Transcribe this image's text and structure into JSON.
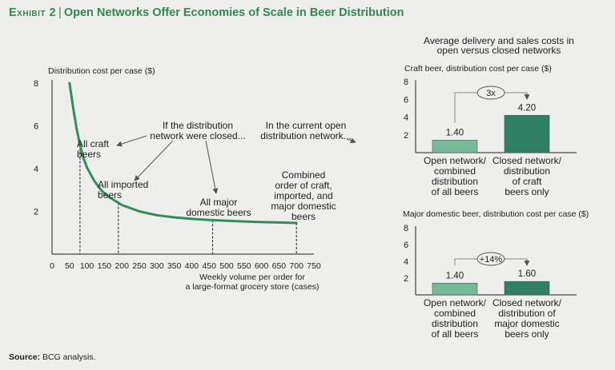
{
  "header": {
    "exhibit_label": "Exhibit 2",
    "title": "Open Networks Offer Economies of Scale in Beer Distribution"
  },
  "source": {
    "label": "Source:",
    "text": "BCG analysis."
  },
  "colors": {
    "accent": "#2f8a4c",
    "curve": "#2e8f5a",
    "open_bar": "#74b89a",
    "closed_bar": "#2f7f64"
  },
  "chart_data": [
    {
      "type": "line",
      "ylabel": "Distribution cost per case ($)",
      "xlabel": [
        "Weekly volume per order for",
        "a large-format grocery store (cases)"
      ],
      "xlim": [
        0,
        750
      ],
      "ylim": [
        0,
        8
      ],
      "x_ticks": [
        "0",
        "50",
        "100",
        "150",
        "200",
        "250",
        "300",
        "350",
        "400",
        "450",
        "500",
        "550",
        "600",
        "650",
        "700",
        "750"
      ],
      "y_ticks": [
        "2",
        "4",
        "6",
        "8"
      ],
      "series": [
        {
          "x": [
            50,
            60,
            70,
            80,
            90,
            100,
            120,
            140,
            160,
            180,
            200,
            250,
            300,
            350,
            400,
            450,
            500,
            550,
            600,
            650,
            700
          ],
          "y": [
            8.0,
            6.9,
            5.9,
            5.1,
            4.5,
            4.05,
            3.45,
            3.0,
            2.7,
            2.5,
            2.3,
            2.0,
            1.82,
            1.72,
            1.65,
            1.6,
            1.56,
            1.53,
            1.5,
            1.48,
            1.46
          ]
        }
      ],
      "markers": [
        {
          "x": 80,
          "label": [
            "All craft",
            "beers"
          ]
        },
        {
          "x": 190,
          "label": [
            "All imported",
            "beers"
          ]
        },
        {
          "x": 460,
          "label": [
            "All major",
            "domestic beers"
          ]
        },
        {
          "x": 700,
          "label": [
            "Combined",
            "order of craft,",
            "imported, and",
            "major domestic",
            "beers"
          ]
        }
      ],
      "annotations": [
        [
          "If the distribution",
          "network were closed..."
        ],
        [
          "In the current open",
          "distribution network..."
        ]
      ]
    },
    {
      "type": "bar",
      "title": [
        "Average delivery and sales costs in",
        "open versus closed networks"
      ],
      "subtitle": "Craft beer, distribution cost per case ($)",
      "ylim": [
        0,
        8
      ],
      "y_ticks": [
        "2",
        "4",
        "6",
        "8"
      ],
      "categories": [
        [
          "Open network/",
          "combined",
          "distribution",
          "of all beers"
        ],
        [
          "Closed network/",
          "distribution",
          "of craft",
          "beers only"
        ]
      ],
      "values": [
        1.4,
        4.2
      ],
      "data_labels": [
        "1.40",
        "4.20"
      ],
      "comparison": "3x"
    },
    {
      "type": "bar",
      "subtitle": "Major domestic beer, distribution cost per case ($)",
      "ylim": [
        0,
        8
      ],
      "y_ticks": [
        "2",
        "4",
        "6",
        "8"
      ],
      "categories": [
        [
          "Open network/",
          "combined",
          "distribution",
          "of all beers"
        ],
        [
          "Closed network/",
          "distribution of",
          "major domestic",
          "beers only"
        ]
      ],
      "values": [
        1.4,
        1.6
      ],
      "data_labels": [
        "1.40",
        "1.60"
      ],
      "comparison": "+14%"
    }
  ]
}
